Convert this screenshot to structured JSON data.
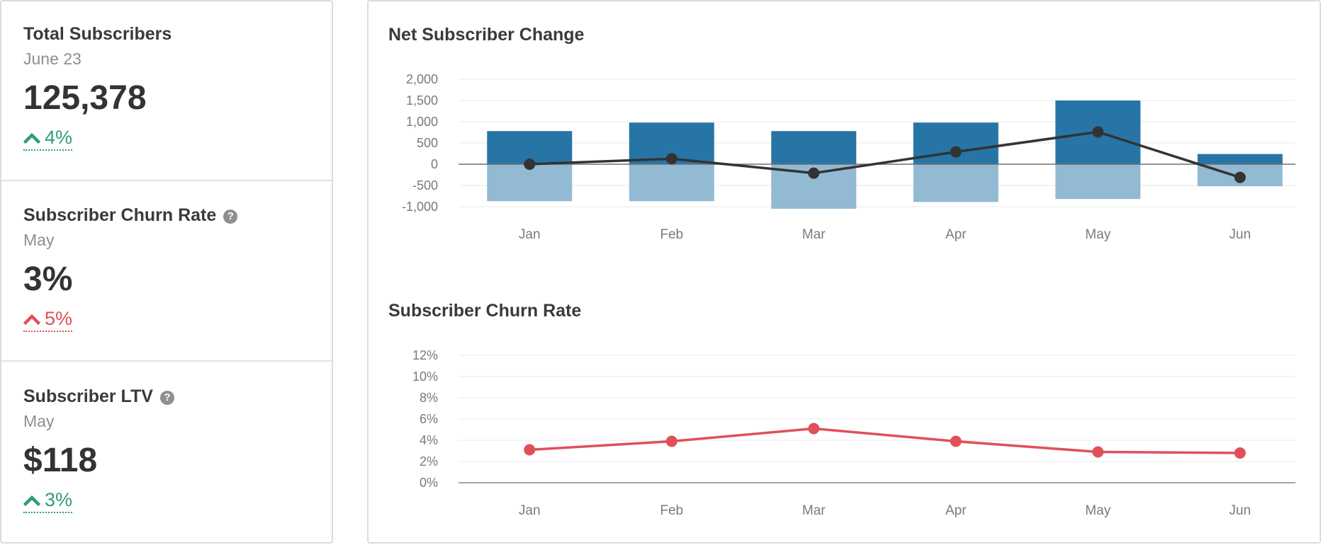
{
  "kpis": [
    {
      "title": "Total Subscribers",
      "period": "June 23",
      "value": "125,378",
      "change": "4%",
      "direction": "up",
      "sentiment": "good",
      "help": false
    },
    {
      "title": "Subscriber Churn Rate",
      "period": "May",
      "value": "3%",
      "change": "5%",
      "direction": "up",
      "sentiment": "bad",
      "help": true
    },
    {
      "title": "Subscriber LTV",
      "period": "May",
      "value": "$118",
      "change": "3%",
      "direction": "up",
      "sentiment": "good",
      "help": true
    }
  ],
  "colors": {
    "gain_bar": "#2775a6",
    "loss_bar": "#93bad3",
    "net_line": "#333333",
    "churn_line": "#e0505a",
    "good": "#2e9d74",
    "bad": "#e0505a"
  },
  "chart_data": [
    {
      "type": "bar",
      "title": "Net Subscriber Change",
      "categories": [
        "Jan",
        "Feb",
        "Mar",
        "Apr",
        "May",
        "Jun"
      ],
      "series": [
        {
          "kind": "bar",
          "values": [
            780,
            980,
            780,
            980,
            1500,
            240
          ]
        },
        {
          "kind": "bar",
          "values": [
            -870,
            -870,
            -1050,
            -890,
            -820,
            -520
          ]
        },
        {
          "kind": "line",
          "values": [
            0,
            130,
            -210,
            290,
            760,
            -310
          ]
        }
      ],
      "ylim": [
        -1000,
        2000
      ],
      "yticks": [
        2000,
        1500,
        1000,
        500,
        0,
        -500,
        -1000
      ],
      "ytick_labels": [
        "2,000",
        "1,500",
        "1,000",
        "500",
        "0",
        "-500",
        "-1,000"
      ],
      "grid": true,
      "xlabel": "",
      "ylabel": ""
    },
    {
      "type": "line",
      "title": "Subscriber Churn Rate",
      "categories": [
        "Jan",
        "Feb",
        "Mar",
        "Apr",
        "May",
        "Jun"
      ],
      "series": [
        {
          "values": [
            3.1,
            3.9,
            5.1,
            3.9,
            2.9,
            2.8
          ]
        }
      ],
      "ylim": [
        0,
        12
      ],
      "yticks": [
        12,
        10,
        8,
        6,
        4,
        2,
        0
      ],
      "ytick_labels": [
        "12%",
        "10%",
        "8%",
        "6%",
        "4%",
        "2%",
        "0%"
      ],
      "grid": true,
      "xlabel": "",
      "ylabel": ""
    }
  ]
}
